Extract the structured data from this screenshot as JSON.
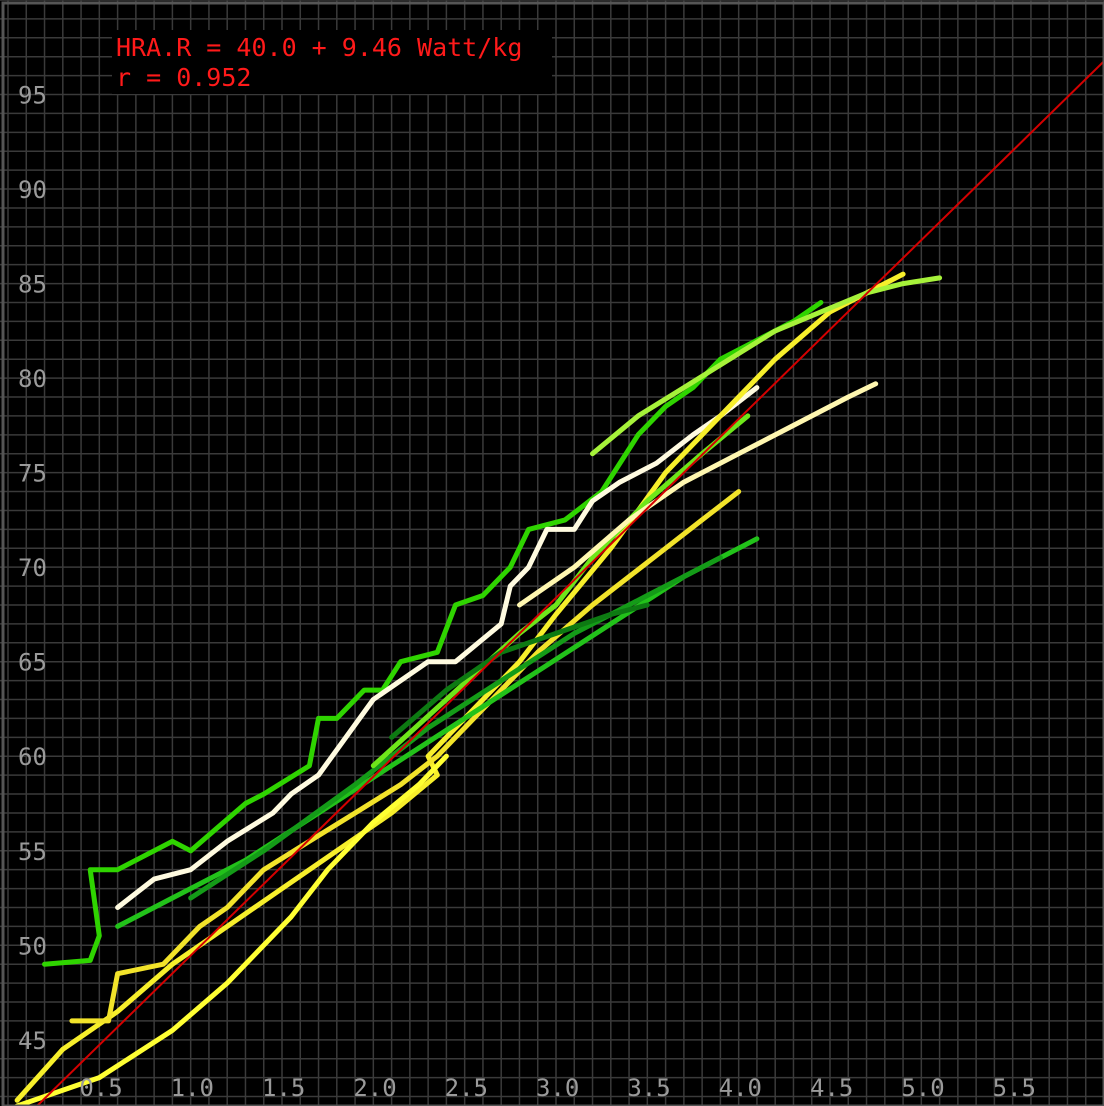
{
  "chart_data": {
    "type": "line",
    "annotations": [
      "HRA.R = 40.0 + 9.46 Watt/kg",
      "r = 0.952"
    ],
    "xlabel": "",
    "ylabel": "",
    "xlim": [
      0,
      6.0
    ],
    "ylim": [
      41.5,
      100
    ],
    "x_ticks": [
      "0.5",
      "1.0",
      "1.5",
      "2.0",
      "2.5",
      "3.0",
      "3.5",
      "4.0",
      "4.5",
      "5.0",
      "5.5"
    ],
    "y_ticks": [
      "45",
      "50",
      "55",
      "60",
      "65",
      "70",
      "75",
      "80",
      "85",
      "90",
      "95"
    ],
    "grid": true,
    "regression": {
      "intercept": 40.0,
      "slope": 9.46,
      "color": "#d40000"
    },
    "colors": {
      "background": "#000000",
      "grid": "#3a3a3a",
      "axis_text": "#9a9a9a",
      "annotation": "#ff1a1a"
    },
    "series": [
      {
        "color": "#2fd400",
        "x": [
          0.2,
          0.45,
          0.5,
          0.45,
          0.6,
          0.9,
          1.0,
          1.3,
          1.4,
          1.65,
          1.7,
          1.8,
          1.95,
          2.05,
          2.15,
          2.35,
          2.45,
          2.6,
          2.75,
          2.85,
          3.05,
          3.25,
          3.45,
          3.6,
          3.75,
          3.9,
          4.1,
          4.3,
          4.45
        ],
        "y": [
          49,
          49.2,
          50.5,
          54,
          54,
          55.5,
          55,
          57.5,
          58,
          59.5,
          62,
          62,
          63.5,
          63.5,
          65,
          65.5,
          68,
          68.5,
          70,
          72,
          72.5,
          74,
          77,
          78.5,
          79.5,
          81,
          82,
          83,
          84
        ]
      },
      {
        "color": "#fffbe0",
        "x": [
          0.6,
          0.8,
          1.0,
          1.2,
          1.45,
          1.55,
          1.7,
          1.85,
          2.0,
          2.3,
          2.45,
          2.7,
          2.75,
          2.85,
          2.95,
          3.1,
          3.2,
          3.35,
          3.55,
          3.75,
          3.9,
          4.1
        ],
        "y": [
          52,
          53.5,
          54,
          55.5,
          57,
          58,
          59,
          61,
          63,
          65,
          65,
          67,
          69,
          70,
          72,
          72,
          73.5,
          74.5,
          75.5,
          77,
          78,
          79.5
        ]
      },
      {
        "color": "#f7ef2b",
        "x": [
          0.05,
          0.3,
          0.6,
          0.9,
          1.2,
          1.5,
          1.8,
          2.1,
          2.35,
          2.3,
          2.55,
          2.8,
          3.0,
          3.3,
          3.6,
          3.9,
          4.2,
          4.5,
          4.9
        ],
        "y": [
          41.8,
          44.5,
          46.5,
          49,
          51,
          53,
          55,
          57,
          59,
          60,
          62.5,
          65,
          67.5,
          71,
          75,
          78,
          81,
          83.5,
          85.5
        ]
      },
      {
        "color": "#ffff33",
        "x": [
          0.05,
          0.5,
          0.9,
          1.2,
          1.55,
          1.75,
          2.0,
          2.25,
          2.4
        ],
        "y": [
          41.5,
          43,
          45.5,
          48,
          51.5,
          54,
          56.5,
          58.5,
          60
        ]
      },
      {
        "color": "#f2e32a",
        "x": [
          0.35,
          0.55,
          0.6,
          0.85,
          1.05,
          1.2,
          1.4,
          1.65,
          1.9,
          2.15,
          2.35,
          2.6,
          2.9,
          3.2,
          3.4,
          3.6,
          3.8,
          4.0
        ],
        "y": [
          46,
          46,
          48.5,
          49,
          51,
          52,
          54,
          55.5,
          57,
          58.5,
          60,
          62.5,
          65.5,
          68,
          69.5,
          71,
          72.5,
          74
        ]
      },
      {
        "color": "#22c21a",
        "x": [
          0.6,
          0.9,
          1.3,
          1.7,
          2.1,
          2.5,
          2.9,
          3.3,
          3.7,
          4.1
        ],
        "y": [
          51,
          52.5,
          54.5,
          57,
          59.5,
          62,
          64.5,
          67,
          69.5,
          71.5
        ]
      },
      {
        "color": "#149b18",
        "x": [
          1.0,
          1.4,
          1.9,
          2.3,
          2.7,
          3.1,
          3.5,
          3.9
        ],
        "y": [
          52.5,
          55,
          58.5,
          61.5,
          64,
          66.5,
          68.5,
          70.5
        ]
      },
      {
        "color": "#6ee61a",
        "x": [
          2.0,
          2.4,
          2.8,
          3.0,
          3.2,
          3.5,
          3.8,
          4.05
        ],
        "y": [
          59.5,
          63,
          66.5,
          68,
          70.5,
          73.5,
          76,
          78
        ]
      },
      {
        "color": "#a6f23a",
        "x": [
          3.2,
          3.45,
          3.7,
          3.95,
          4.2,
          4.45,
          4.7,
          4.9,
          5.1
        ],
        "y": [
          76,
          78,
          79.5,
          81,
          82.5,
          83.5,
          84.5,
          85,
          85.3
        ]
      },
      {
        "color": "#0d7a12",
        "x": [
          2.1,
          2.4,
          2.7,
          3.0,
          3.3,
          3.5
        ],
        "y": [
          61,
          63.5,
          65.5,
          66.5,
          67.5,
          68
        ]
      },
      {
        "color": "#fff7b0",
        "x": [
          2.8,
          3.1,
          3.4,
          3.7,
          4.0,
          4.3,
          4.6,
          4.75
        ],
        "y": [
          68,
          70,
          72.5,
          74.5,
          76,
          77.5,
          79,
          79.7
        ]
      }
    ]
  }
}
